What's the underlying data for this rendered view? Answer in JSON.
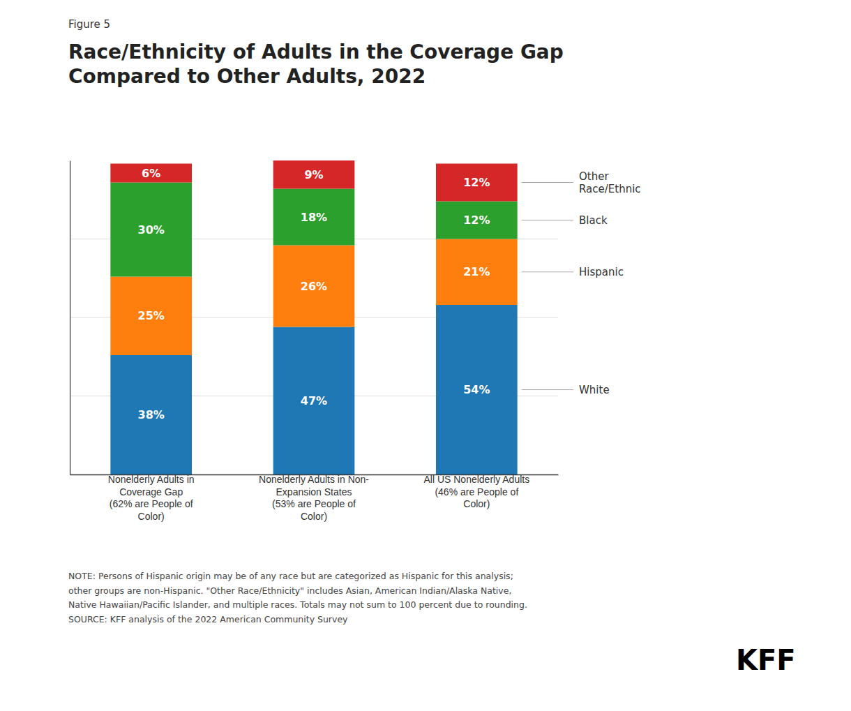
{
  "chart_data": {
    "type": "bar",
    "stacked": true,
    "title": "Race/Ethnicity of Adults in the Coverage Gap\nCompared to Other Adults, 2022",
    "annotations": [
      "Figure 5",
      "NOTE: Persons of Hispanic origin may be of any race but are categorized as Hispanic for this analysis;\nother groups are non-Hispanic. \"Other Race/Ethnicity\" includes Asian, American Indian/Alaska Native,\nNative Hawaiian/Pacific Islander, and multiple races. Totals may not sum to 100 percent due to rounding.\nSOURCE: KFF analysis of the 2022 American Community Survey",
      "KFF"
    ],
    "categories": [
      "Nonelderly Adults in\nCoverage Gap\n(62% are People of\nColor)",
      "Nonelderly Adults in Non-\nExpansion States\n(53% are People of\nColor)",
      "All US Nonelderly Adults\n(46% are People of\nColor)"
    ],
    "series": [
      {
        "name": "White",
        "values": [
          38,
          47,
          54
        ],
        "value_labels": [
          "38%",
          "47%",
          "54%"
        ]
      },
      {
        "name": "Hispanic",
        "values": [
          25,
          26,
          21
        ],
        "value_labels": [
          "25%",
          "26%",
          "21%"
        ]
      },
      {
        "name": "Black",
        "values": [
          30,
          18,
          12
        ],
        "value_labels": [
          "30%",
          "18%",
          "12%"
        ]
      },
      {
        "name": "Other\nRace/Ethnic",
        "values": [
          6,
          9,
          12
        ],
        "value_labels": [
          "6%",
          "9%",
          "12%"
        ]
      }
    ],
    "ylim": [
      0,
      100
    ],
    "yticks": [
      25,
      50,
      75
    ],
    "grid": true,
    "tick_labels": "x",
    "data_labels": true,
    "legend": "right"
  }
}
